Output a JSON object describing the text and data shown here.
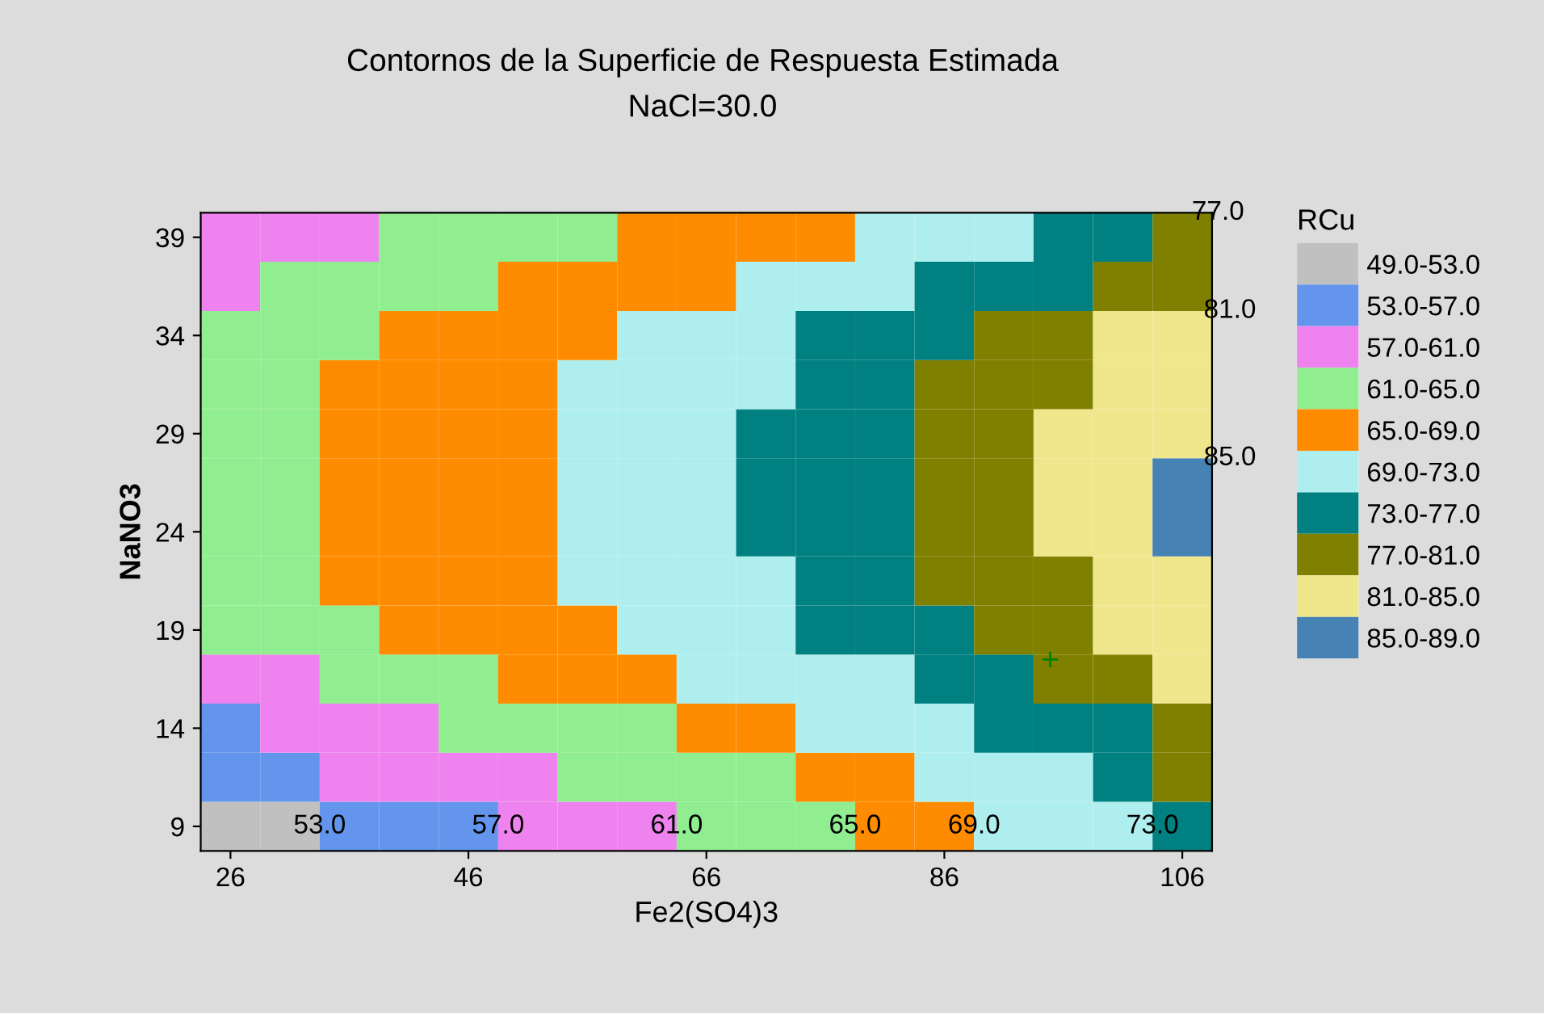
{
  "chart_data": {
    "type": "heatmap",
    "title": "Contornos de la Superficie de Respuesta Estimada",
    "subtitle": "NaCl=30.0",
    "xlabel": "Fe2(SO4)3",
    "ylabel": "NaNO3",
    "clabel": "RCu",
    "categories": [
      "26",
      null,
      null,
      null,
      "46",
      null,
      null,
      null,
      "66",
      null,
      null,
      null,
      "86",
      null,
      null,
      null,
      "106"
    ],
    "y_categories": [
      "39",
      null,
      "34",
      null,
      "29",
      null,
      "24",
      null,
      "19",
      null,
      "14",
      null,
      "9"
    ],
    "cells": [
      [
        59,
        59,
        59,
        63,
        63,
        63,
        63,
        67,
        67,
        67,
        67,
        71,
        71,
        71,
        75,
        75,
        79
      ],
      [
        59,
        63,
        63,
        63,
        63,
        67,
        67,
        67,
        67,
        71,
        71,
        71,
        75,
        75,
        75,
        79,
        79
      ],
      [
        63,
        63,
        63,
        67,
        67,
        67,
        67,
        71,
        71,
        71,
        75,
        75,
        75,
        79,
        79,
        83,
        83
      ],
      [
        63,
        63,
        67,
        67,
        67,
        67,
        71,
        71,
        71,
        71,
        75,
        75,
        79,
        79,
        79,
        83,
        83
      ],
      [
        63,
        63,
        67,
        67,
        67,
        67,
        71,
        71,
        71,
        75,
        75,
        75,
        79,
        79,
        83,
        83,
        83
      ],
      [
        63,
        63,
        67,
        67,
        67,
        67,
        71,
        71,
        71,
        75,
        75,
        75,
        79,
        79,
        83,
        83,
        87
      ],
      [
        63,
        63,
        67,
        67,
        67,
        67,
        71,
        71,
        71,
        75,
        75,
        75,
        79,
        79,
        83,
        83,
        87
      ],
      [
        63,
        63,
        67,
        67,
        67,
        67,
        71,
        71,
        71,
        71,
        75,
        75,
        79,
        79,
        79,
        83,
        83
      ],
      [
        63,
        63,
        63,
        67,
        67,
        67,
        67,
        71,
        71,
        71,
        75,
        75,
        75,
        79,
        79,
        83,
        83
      ],
      [
        59,
        59,
        63,
        63,
        63,
        67,
        67,
        67,
        71,
        71,
        71,
        71,
        75,
        75,
        79,
        79,
        83
      ],
      [
        55,
        59,
        59,
        59,
        63,
        63,
        63,
        63,
        67,
        67,
        71,
        71,
        71,
        75,
        75,
        75,
        79
      ],
      [
        55,
        55,
        59,
        59,
        59,
        59,
        63,
        63,
        63,
        63,
        67,
        67,
        71,
        71,
        71,
        75,
        79
      ],
      [
        51,
        51,
        55,
        55,
        55,
        59,
        59,
        59,
        63,
        63,
        63,
        67,
        67,
        71,
        71,
        71,
        75
      ]
    ],
    "clim": [
      49,
      89
    ],
    "cticks": [
      {
        "value": 51,
        "label": "49.0-53.0"
      },
      {
        "value": 55,
        "label": "53.0-57.0"
      },
      {
        "value": 59,
        "label": "57.0-61.0"
      },
      {
        "value": 63,
        "label": "61.0-65.0"
      },
      {
        "value": 67,
        "label": "65.0-69.0"
      },
      {
        "value": 71,
        "label": "69.0-73.0"
      },
      {
        "value": 75,
        "label": "73.0-77.0"
      },
      {
        "value": 79,
        "label": "77.0-81.0"
      },
      {
        "value": 83,
        "label": "81.0-85.0"
      },
      {
        "value": 87,
        "label": "85.0-89.0"
      }
    ],
    "colors": [
      "#c0c0c0",
      "#6495ed",
      "#ee82ee",
      "#90ee90",
      "#ff8c00",
      "#afeeee",
      "#008080",
      "#808000",
      "#f0e68c",
      "#4682b4"
    ],
    "annotations": [
      "53.0",
      "57.0",
      "61.0",
      "65.0",
      "69.0",
      "73.0",
      "77.0",
      "81.0",
      "85.0"
    ]
  }
}
